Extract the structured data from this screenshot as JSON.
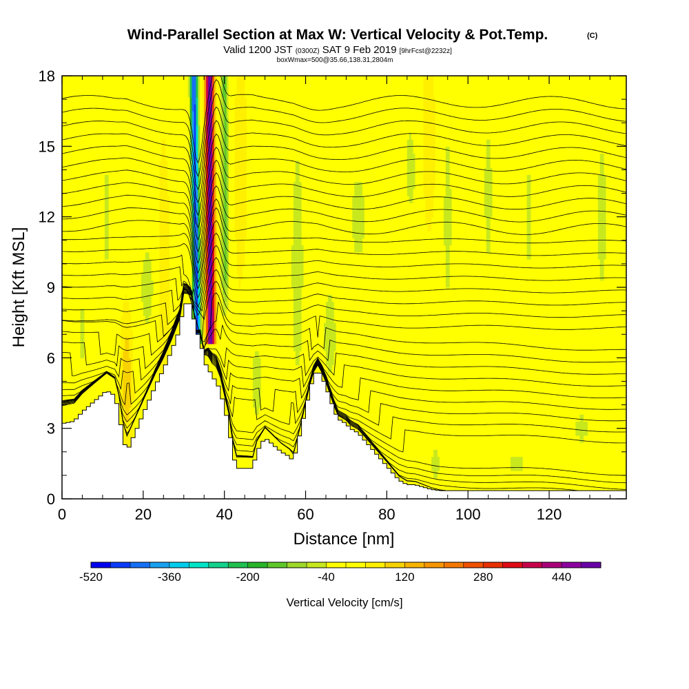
{
  "header": {
    "title_main": "Wind-Parallel Section at Max W: Vertical Velocity & Pot.Temp.",
    "title_badge": "(C)",
    "subtitle_a": "Valid 1200 JST",
    "subtitle_b": "(0300Z)",
    "subtitle_c": "SAT 9 Feb 2019",
    "subtitle_d": "[9hrFcst@2232z]",
    "subtitle2": "boxWmax=500@35.66,138.31,2804m"
  },
  "chart_data": {
    "type": "heatmap",
    "title": "Wind-Parallel Section at Max W: Vertical Velocity & Pot.Temp.",
    "xlabel": "Distance [nm]",
    "ylabel": "Height [Kft MSL]",
    "xlim": [
      0,
      139
    ],
    "ylim": [
      0,
      18
    ],
    "x_ticks": [
      0,
      20,
      40,
      60,
      80,
      100,
      120
    ],
    "x_tick_labels": [
      "0",
      "20",
      "40",
      "60",
      "80",
      "100",
      "120"
    ],
    "y_ticks": [
      0,
      3,
      6,
      9,
      12,
      15,
      18
    ],
    "y_tick_labels": [
      "0",
      "3",
      "6",
      "9",
      "12",
      "15",
      "18"
    ],
    "terrain_top_kft": [
      [
        0,
        3.2
      ],
      [
        3,
        3.3
      ],
      [
        5,
        3.7
      ],
      [
        7,
        4.0
      ],
      [
        9,
        4.3
      ],
      [
        11,
        4.6
      ],
      [
        13,
        4.4
      ],
      [
        14,
        3.7
      ],
      [
        15,
        2.6
      ],
      [
        16,
        2.0
      ],
      [
        17,
        2.4
      ],
      [
        19,
        3.2
      ],
      [
        21,
        4.0
      ],
      [
        23,
        4.8
      ],
      [
        25,
        5.5
      ],
      [
        27,
        6.3
      ],
      [
        29,
        7.2
      ],
      [
        30,
        8.3
      ],
      [
        32,
        8.3
      ],
      [
        33,
        7.0
      ],
      [
        34,
        7.0
      ],
      [
        35,
        5.8
      ],
      [
        36,
        5.6
      ],
      [
        37,
        5.2
      ],
      [
        38,
        5.0
      ],
      [
        39,
        4.6
      ],
      [
        41,
        3.2
      ],
      [
        42,
        2.0
      ],
      [
        43,
        1.3
      ],
      [
        47,
        1.3
      ],
      [
        48,
        2.0
      ],
      [
        50,
        2.6
      ],
      [
        52,
        2.3
      ],
      [
        54,
        2.0
      ],
      [
        56,
        1.8
      ],
      [
        57,
        1.6
      ],
      [
        58,
        2.3
      ],
      [
        60,
        3.8
      ],
      [
        61,
        4.6
      ],
      [
        62,
        5.2
      ],
      [
        63,
        5.5
      ],
      [
        64,
        5.2
      ],
      [
        65,
        4.8
      ],
      [
        66,
        4.3
      ],
      [
        67,
        3.8
      ],
      [
        68,
        3.4
      ],
      [
        70,
        3.2
      ],
      [
        71,
        3.0
      ],
      [
        73,
        2.8
      ],
      [
        75,
        2.4
      ],
      [
        77,
        2.0
      ],
      [
        79,
        1.6
      ],
      [
        81,
        1.2
      ],
      [
        83,
        0.8
      ],
      [
        85,
        0.6
      ],
      [
        87,
        0.6
      ],
      [
        89,
        0.5
      ],
      [
        91,
        0.4
      ],
      [
        93,
        0.35
      ],
      [
        139,
        0.35
      ]
    ],
    "vertical_velocity_features_cm_s": [
      {
        "x_center_nm": 33.2,
        "value": -480
      },
      {
        "x_center_nm": 36.6,
        "value": 500
      },
      {
        "x_center_nm": 40.2,
        "value": -150
      },
      {
        "x_center_nm": 16,
        "value": 90
      },
      {
        "x_center_nm": 105,
        "value": -60
      },
      {
        "x_center_nm": 115,
        "value": -50
      }
    ],
    "theta_contour_count": 34,
    "colorbar": {
      "title": "Vertical Velocity [cm/s]",
      "min": -520,
      "max": 520,
      "step": 40,
      "tick_values": [
        -520,
        -360,
        -200,
        -40,
        120,
        280,
        440
      ],
      "tick_labels": [
        "-520",
        "-360",
        "-200",
        "-40",
        "120",
        "280",
        "440"
      ],
      "colors": [
        "#0000f0",
        "#0a3cf8",
        "#1670f5",
        "#1aa0f0",
        "#00ccee",
        "#00e4c8",
        "#12d28c",
        "#20c050",
        "#28b428",
        "#5ec828",
        "#9ed828",
        "#c8e81e",
        "#ffff00",
        "#ffff00",
        "#fff000",
        "#f8d200",
        "#f8b400",
        "#f89600",
        "#f47800",
        "#f05000",
        "#e83000",
        "#e00a14",
        "#c8004a",
        "#aa007a",
        "#8c00a0",
        "#6a00a8"
      ]
    }
  }
}
